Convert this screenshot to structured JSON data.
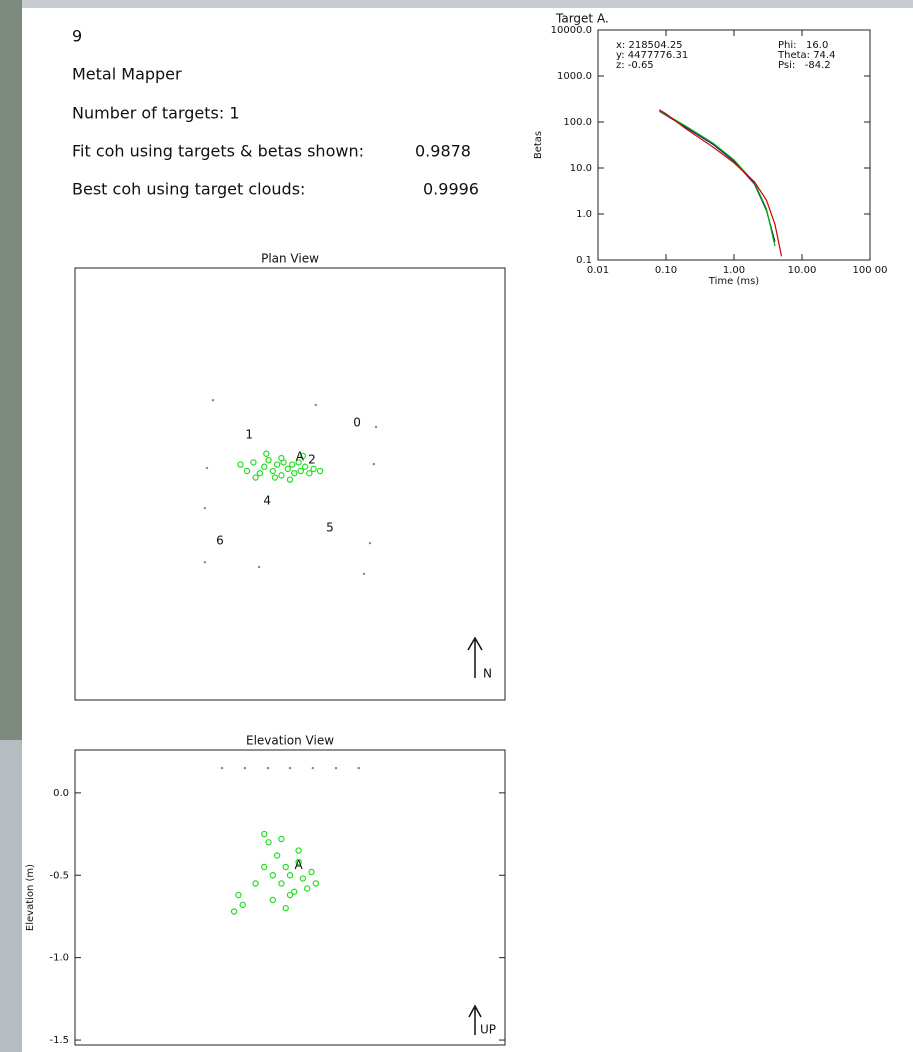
{
  "info": {
    "id": "9",
    "instrument": "Metal Mapper",
    "targets_line": "Number of targets: 1",
    "fit_label": "Fit coh using targets & betas shown:",
    "fit_value": "0.9878",
    "best_label": "Best coh using target clouds:",
    "best_value": "0.9996"
  },
  "chart_data": [
    {
      "type": "line",
      "title": "Target A.",
      "xlabel": "Time (ms)",
      "ylabel": "Betas",
      "xlog": true,
      "ylog": true,
      "xlim": [
        0.01,
        100
      ],
      "ylim": [
        0.1,
        10000
      ],
      "xticks": [
        0.01,
        {
          "value": 0.1,
          "label": "0.10"
        },
        {
          "value": 1,
          "label": "1.00"
        },
        {
          "value": 10,
          "label": "10.00"
        },
        {
          "value": 100,
          "label": "100 00"
        }
      ],
      "yticks": [
        0.1,
        {
          "value": 1,
          "label": "1.0"
        },
        {
          "value": 10,
          "label": "10.0"
        },
        {
          "value": 100,
          "label": "100.0"
        },
        {
          "value": 1000,
          "label": "1000.0"
        },
        {
          "value": 10000,
          "label": "10000.0"
        }
      ],
      "annotations": [
        "x: 218504.25",
        "y: 4477776.31",
        "z: -0.65",
        "Phi:   16.0",
        "Theta: 74.4",
        "Psi:   -84.2"
      ],
      "x": [
        0.08,
        0.1,
        0.2,
        0.5,
        1,
        2,
        3,
        4,
        5
      ],
      "series": [
        {
          "color": "#1a1a8c",
          "values": [
            170,
            140,
            75,
            32,
            14,
            4.5,
            1.2,
            0.25,
            null
          ]
        },
        {
          "color": "#00b000",
          "values": [
            175,
            145,
            80,
            34,
            15,
            4.8,
            1.3,
            0.2,
            null
          ]
        },
        {
          "color": "#d00000",
          "values": [
            185,
            150,
            70,
            28,
            13,
            5,
            2,
            0.6,
            0.12
          ]
        }
      ]
    },
    {
      "type": "scatter",
      "title": "Plan View",
      "north_label": "N",
      "xlim": [
        0,
        100
      ],
      "ylim": [
        0,
        100
      ],
      "sensors": {
        "color": "#888888",
        "x": [
          32.1,
          56.0,
          70.0,
          30.7,
          69.5,
          30.2,
          68.6,
          30.2,
          42.8,
          67.2
        ],
        "y": [
          69.4,
          68.3,
          63.2,
          53.7,
          54.6,
          44.4,
          36.3,
          31.9,
          30.8,
          29.2
        ]
      },
      "labels": [
        {
          "text": "0",
          "x": 65.6,
          "y": 64.1
        },
        {
          "text": "1",
          "x": 40.5,
          "y": 61.3
        },
        {
          "text": "2",
          "x": 55.1,
          "y": 55.6
        },
        {
          "text": "4",
          "x": 44.7,
          "y": 46.1
        },
        {
          "text": "5",
          "x": 59.3,
          "y": 39.8
        },
        {
          "text": "6",
          "x": 33.7,
          "y": 36.8
        },
        {
          "text": "A",
          "x": 52.3,
          "y": 56.2
        }
      ],
      "series": [
        {
          "color": "#22dd22",
          "x": [
            38.5,
            40,
            41.5,
            43,
            44,
            45,
            46,
            47,
            48,
            48.5,
            49.5,
            50.5,
            51,
            52,
            52.5,
            53.5,
            54.5,
            55.5,
            46.5,
            50,
            48,
            42,
            44.5,
            53,
            57
          ],
          "y": [
            54.5,
            53,
            55,
            52.5,
            54,
            55.5,
            53,
            54.5,
            52,
            55,
            53.5,
            54.5,
            52.5,
            55,
            53,
            54,
            52.5,
            53.5,
            51.5,
            51,
            56,
            51.5,
            57,
            56.5,
            53
          ]
        }
      ]
    },
    {
      "type": "scatter",
      "title": "Elevation View",
      "ylabel": "Elevation (m)",
      "up_label": "UP",
      "xlim": [
        0,
        100
      ],
      "ylim": [
        -1.53,
        0.26
      ],
      "yticks": [
        {
          "value": 0,
          "label": "0.0"
        },
        -0.5,
        {
          "value": -1,
          "label": "-1.0"
        },
        -1.5
      ],
      "sensors": {
        "color": "#888888",
        "x": [
          34.2,
          39.5,
          44.9,
          50,
          55.3,
          60.7,
          66
        ],
        "y": [
          0.15,
          0.15,
          0.15,
          0.15,
          0.15,
          0.15,
          0.15
        ]
      },
      "labels": [
        {
          "text": "A",
          "x": 52,
          "y": -0.44
        }
      ],
      "series": [
        {
          "color": "#22dd22",
          "x": [
            38,
            39,
            37,
            42,
            44,
            45,
            46,
            47,
            48,
            49,
            50,
            51,
            52,
            53,
            54,
            55,
            48,
            50,
            46,
            52,
            56,
            44,
            49
          ],
          "y": [
            -0.62,
            -0.68,
            -0.72,
            -0.55,
            -0.45,
            -0.3,
            -0.5,
            -0.38,
            -0.55,
            -0.45,
            -0.5,
            -0.6,
            -0.42,
            -0.52,
            -0.58,
            -0.48,
            -0.28,
            -0.62,
            -0.65,
            -0.35,
            -0.55,
            -0.25,
            -0.7
          ]
        }
      ]
    }
  ]
}
